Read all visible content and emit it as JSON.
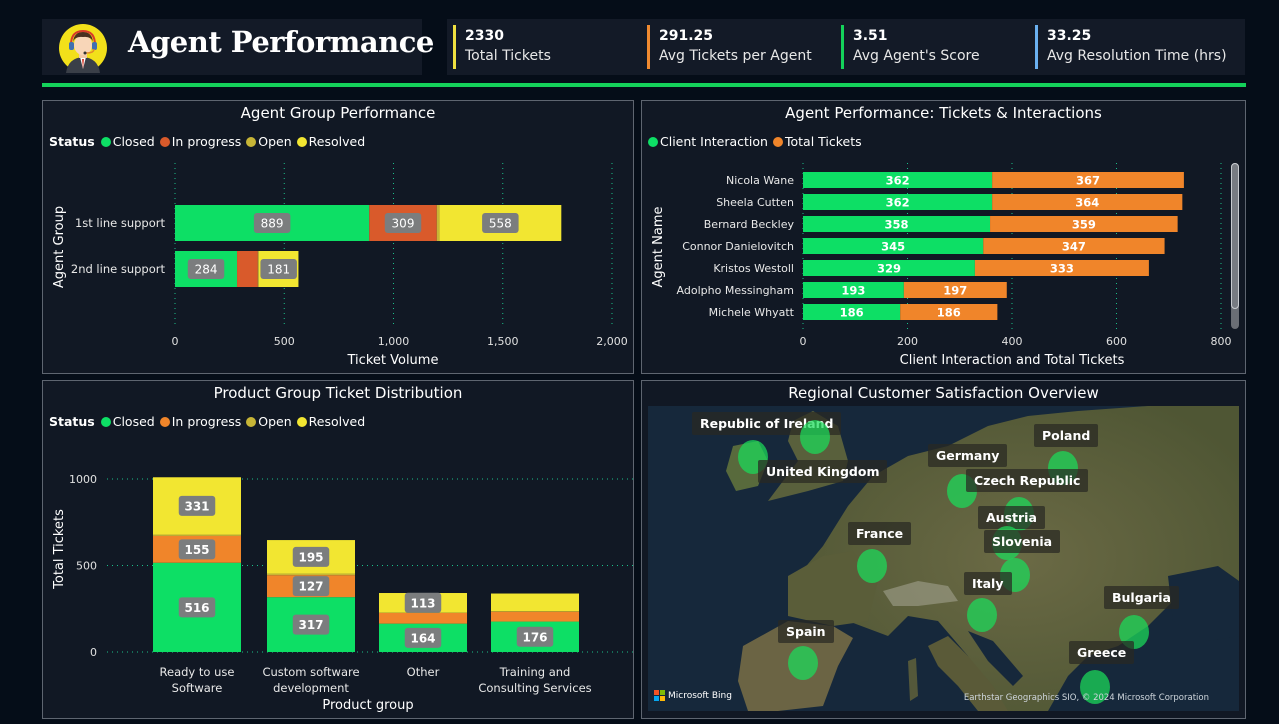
{
  "header": {
    "title": "Agent Performance",
    "avatar_icon": "support-agent-icon"
  },
  "kpis": [
    {
      "value": "2330",
      "label": "Total Tickets",
      "color": "#f0e040"
    },
    {
      "value": "291.25",
      "label": "Avg Tickets per Agent",
      "color": "#f08a30"
    },
    {
      "value": "3.51",
      "label": "Avg Agent's Score",
      "color": "#14d25a"
    },
    {
      "value": "33.25",
      "label": "Avg Resolution Time (hrs)",
      "color": "#6ab0f0"
    }
  ],
  "colors": {
    "closed": "#0ddf65",
    "in_progress_group": "#d95a2b",
    "in_progress_product": "#f0852a",
    "open": "#c7b536",
    "resolved": "#f2e631",
    "accent_line": "#14d25a",
    "client_interaction": "#0ddf65",
    "total_tickets": "#f0852a"
  },
  "chart_data": [
    {
      "id": "agent_group",
      "type": "bar",
      "orientation": "horizontal",
      "stacked": true,
      "title": "Agent Group Performance",
      "legend_title": "Status",
      "legend": [
        "Closed",
        "In progress",
        "Open",
        "Resolved"
      ],
      "legend_position": "top-left",
      "categories": [
        "1st line support",
        "2nd line support"
      ],
      "series": [
        {
          "name": "Closed",
          "values": [
            889,
            284
          ],
          "labels": [
            "889",
            "284"
          ]
        },
        {
          "name": "In progress",
          "values": [
            309,
            95
          ],
          "labels": [
            "309",
            ""
          ]
        },
        {
          "name": "Open",
          "values": [
            12,
            5
          ],
          "labels": [
            "",
            ""
          ]
        },
        {
          "name": "Resolved",
          "values": [
            558,
            181
          ],
          "labels": [
            "558",
            "181"
          ]
        }
      ],
      "xlabel": "Ticket Volume",
      "ylabel": "Agent Group",
      "xlim": [
        0,
        2000
      ],
      "xticks": [
        0,
        500,
        1000,
        1500,
        2000
      ],
      "xtick_labels": [
        "0",
        "500",
        "1,000",
        "1,500",
        "2,000"
      ],
      "grid": true
    },
    {
      "id": "agent_tickets",
      "type": "bar",
      "orientation": "horizontal",
      "stacked": true,
      "title": "Agent Performance: Tickets & Interactions",
      "legend": [
        "Client Interaction",
        "Total Tickets"
      ],
      "legend_position": "top-left",
      "categories": [
        "Nicola Wane",
        "Sheela Cutten",
        "Bernard Beckley",
        "Connor Danielovitch",
        "Kristos Westoll",
        "Adolpho Messingham",
        "Michele Whyatt"
      ],
      "series": [
        {
          "name": "Client Interaction",
          "values": [
            362,
            362,
            358,
            345,
            329,
            193,
            186
          ]
        },
        {
          "name": "Total Tickets",
          "values": [
            367,
            364,
            359,
            347,
            333,
            197,
            186
          ]
        }
      ],
      "xlabel": "Client Interaction and Total Tickets",
      "ylabel": "Agent Name",
      "xlim": [
        0,
        800
      ],
      "xticks": [
        0,
        200,
        400,
        600,
        800
      ],
      "xtick_labels": [
        "0",
        "200",
        "400",
        "600",
        "800"
      ],
      "grid": true,
      "scrollbar": true
    },
    {
      "id": "product_group",
      "type": "bar",
      "orientation": "vertical",
      "stacked": true,
      "title": "Product Group Ticket Distribution",
      "legend_title": "Status",
      "legend": [
        "Closed",
        "In progress",
        "Open",
        "Resolved"
      ],
      "legend_position": "top-left",
      "categories": [
        [
          "Ready to use",
          "Software"
        ],
        [
          "Custom software",
          "development"
        ],
        [
          "Other"
        ],
        [
          "Training and",
          "Consulting Services"
        ]
      ],
      "series": [
        {
          "name": "Closed",
          "values": [
            516,
            317,
            164,
            176
          ],
          "labels": [
            "516",
            "317",
            "164",
            "176"
          ]
        },
        {
          "name": "In progress",
          "values": [
            155,
            127,
            62,
            57
          ],
          "labels": [
            "155",
            "127",
            "",
            ""
          ]
        },
        {
          "name": "Open",
          "values": [
            8,
            8,
            2,
            2
          ],
          "labels": [
            "",
            "",
            "",
            ""
          ]
        },
        {
          "name": "Resolved",
          "values": [
            331,
            195,
            113,
            103
          ],
          "labels": [
            "331",
            "195",
            "113",
            ""
          ]
        }
      ],
      "xlabel": "Product group",
      "ylabel": "Total Tickets",
      "ylim": [
        0,
        1000
      ],
      "yticks": [
        0,
        500,
        1000
      ],
      "ytick_labels": [
        "0",
        "500",
        "1000"
      ],
      "grid": true
    }
  ],
  "map": {
    "title": "Regional Customer Satisfaction Overview",
    "regions": [
      "Republic of Ireland",
      "United Kingdom",
      "Germany",
      "Poland",
      "Czech Republic",
      "Austria",
      "Slovenia",
      "France",
      "Italy",
      "Bulgaria",
      "Spain",
      "Greece"
    ],
    "provider": "Microsoft Bing",
    "copyright": "Earthstar Geographics SIO, © 2024 Microsoft Corporation"
  }
}
